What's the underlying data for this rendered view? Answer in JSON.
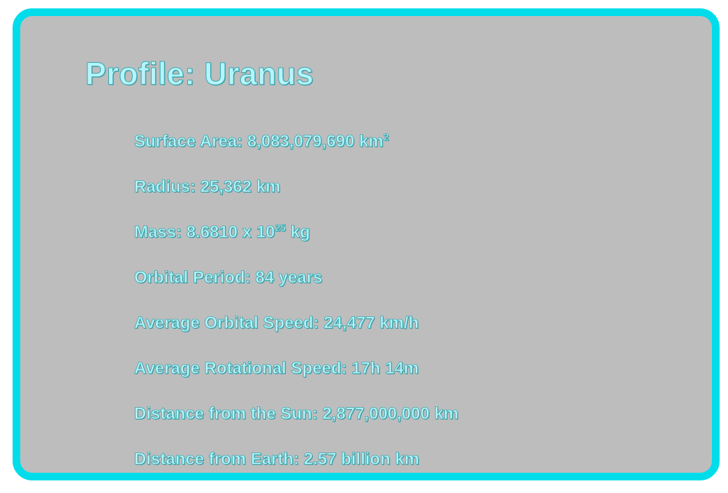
{
  "profile": {
    "title": "Profile: Uranus",
    "facts": [
      {
        "label": "Surface Area: 8,083,079,690 km",
        "sup": "2",
        "suffix": ""
      },
      {
        "label": "Radius: 25,362 km",
        "sup": "",
        "suffix": ""
      },
      {
        "label": "Mass: 8.6810 x 10",
        "sup": "25",
        "suffix": " kg"
      },
      {
        "label": "Orbital Period: 84 years",
        "sup": "",
        "suffix": ""
      },
      {
        "label": "Average Orbital Speed: 24,477 km/h",
        "sup": "",
        "suffix": ""
      },
      {
        "label": "Average Rotational Speed: 17h 14m",
        "sup": "",
        "suffix": ""
      },
      {
        "label": "Distance from the Sun: 2,877,000,000 km",
        "sup": "",
        "suffix": ""
      },
      {
        "label": "Distance from Earth: 2.57 billion km",
        "sup": "",
        "suffix": ""
      }
    ]
  }
}
